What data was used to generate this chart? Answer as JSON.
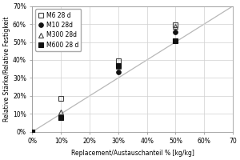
{
  "title": "",
  "xlabel": "Replacement/Austauschanteil % [kg/kg]",
  "ylabel": "Relative Stärke/Relative Festigkeit",
  "xlim": [
    0,
    0.7
  ],
  "ylim": [
    0,
    0.7
  ],
  "xticks": [
    0.0,
    0.1,
    0.2,
    0.3,
    0.4,
    0.5,
    0.6,
    0.7
  ],
  "yticks": [
    0.0,
    0.1,
    0.2,
    0.3,
    0.4,
    0.5,
    0.6,
    0.7
  ],
  "xtick_labels": [
    "0%",
    "10%",
    "20%",
    "30%",
    "40%",
    "50%",
    "60%",
    "70"
  ],
  "ytick_labels": [
    "0%",
    "10%",
    "20%",
    "30%",
    "40%",
    "50%",
    "60%",
    "70%"
  ],
  "ref_line": [
    [
      0,
      0
    ],
    [
      0.7,
      0.7
    ]
  ],
  "ref_line_color": "#b8b8b8",
  "series": [
    {
      "label": "M6 28 d",
      "marker": "s",
      "fillstyle": "none",
      "color": "#444444",
      "markersize": 4,
      "data_x": [
        0.0,
        0.1,
        0.3,
        0.5
      ],
      "data_y": [
        0.0,
        0.185,
        0.395,
        0.595
      ]
    },
    {
      "label": "M10 28d",
      "marker": "o",
      "fillstyle": "full",
      "color": "#111111",
      "markersize": 4,
      "data_x": [
        0.0,
        0.1,
        0.3,
        0.5
      ],
      "data_y": [
        0.0,
        0.08,
        0.335,
        0.555
      ]
    },
    {
      "label": "M300 28d",
      "marker": "^",
      "fillstyle": "none",
      "color": "#444444",
      "markersize": 4,
      "data_x": [
        0.0,
        0.1,
        0.3,
        0.5
      ],
      "data_y": [
        0.0,
        0.11,
        0.365,
        0.585
      ]
    },
    {
      "label": "M600 28 d",
      "marker": "s",
      "fillstyle": "full",
      "color": "#111111",
      "markersize": 4,
      "data_x": [
        0.0,
        0.1,
        0.3,
        0.5
      ],
      "data_y": [
        0.0,
        0.08,
        0.37,
        0.505
      ]
    }
  ],
  "grid_color": "#d0d0d0",
  "background_color": "#ffffff",
  "legend_fontsize": 5.5,
  "axis_fontsize": 5.5,
  "tick_fontsize": 5.5
}
